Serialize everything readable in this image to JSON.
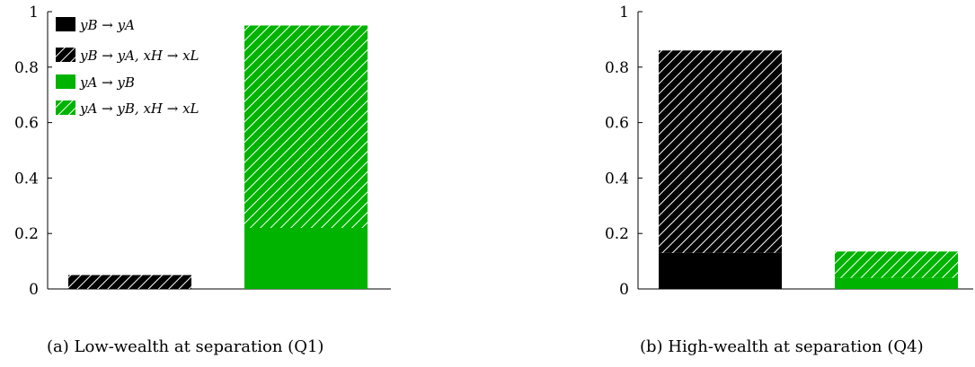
{
  "colors": {
    "black": "#000000",
    "green": "#00b300",
    "hatch_line": "#ffffff"
  },
  "charts": [
    {
      "type": "bar",
      "stacked": true,
      "caption": "(a) Low-wealth at separation (Q1)",
      "ylim": [
        0,
        1
      ],
      "yticks": [
        "0",
        "0.2",
        "0.4",
        "0.6",
        "0.8",
        "1"
      ],
      "legend_position": "top-left",
      "legend": [
        {
          "label": "yB → yA",
          "color": "black",
          "hatched": false
        },
        {
          "label": "yB → yA, xH → xL",
          "color": "black",
          "hatched": true
        },
        {
          "label": "yA → yB",
          "color": "green",
          "hatched": false
        },
        {
          "label": "yA → yB, xH → xL",
          "color": "green",
          "hatched": true
        }
      ],
      "bars": [
        {
          "color": "black",
          "solid": 0.0,
          "hatched": 0.05
        },
        {
          "color": "green",
          "solid": 0.22,
          "hatched": 0.73
        }
      ]
    },
    {
      "type": "bar",
      "stacked": true,
      "caption": "(b) High-wealth at separation (Q4)",
      "ylim": [
        0,
        1
      ],
      "yticks": [
        "0",
        "0.2",
        "0.4",
        "0.6",
        "0.8",
        "1"
      ],
      "bars": [
        {
          "color": "black",
          "solid": 0.13,
          "hatched": 0.73
        },
        {
          "color": "green",
          "solid": 0.04,
          "hatched": 0.095
        }
      ]
    }
  ]
}
